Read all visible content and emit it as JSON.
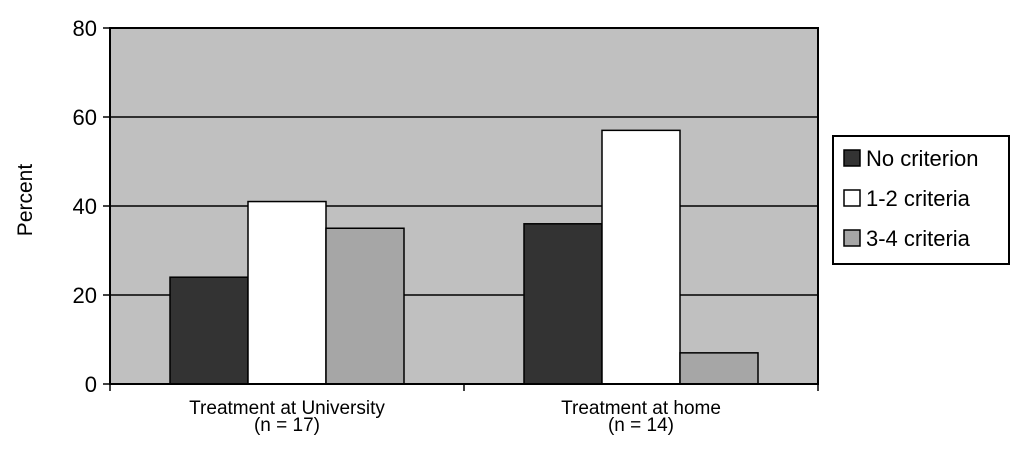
{
  "chart_data": {
    "type": "bar",
    "categories": [
      [
        "Treatment at University",
        "(n = 17)"
      ],
      [
        "Treatment at home",
        "(n = 14)"
      ]
    ],
    "series": [
      {
        "name": "No criterion",
        "values": [
          24,
          36
        ],
        "color": "#333333"
      },
      {
        "name": "1-2 criteria",
        "values": [
          41,
          57
        ],
        "color": "#ffffff"
      },
      {
        "name": "3-4 criteria",
        "values": [
          35,
          7
        ],
        "color": "#a6a6a6"
      }
    ],
    "ylabel": "Percent",
    "ylim": [
      0,
      80
    ],
    "yticks": [
      0,
      20,
      40,
      60,
      80
    ],
    "grid": true,
    "plot_background": "#c0c0c0",
    "legend_position": "right"
  }
}
